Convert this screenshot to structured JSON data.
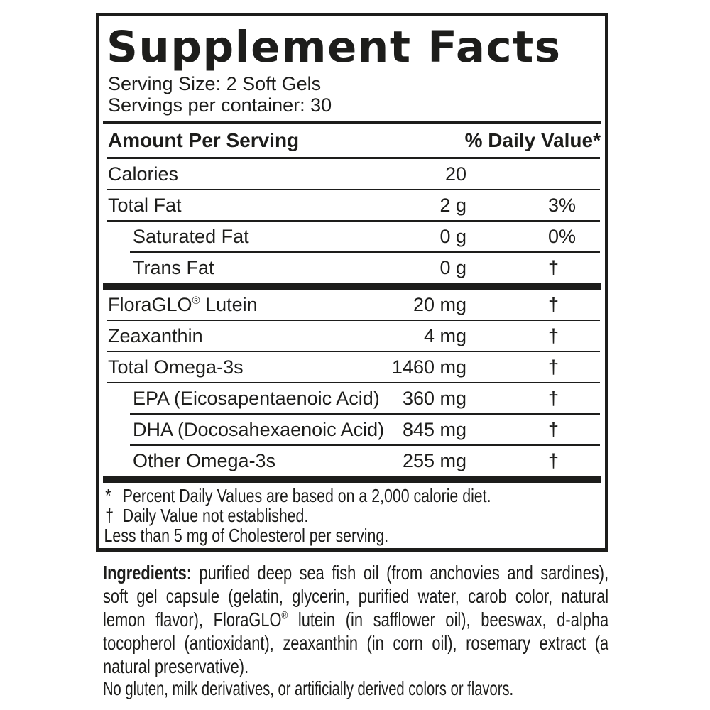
{
  "panel": {
    "title": "Supplement Facts",
    "serving_size": "Serving Size: 2 Soft Gels",
    "servings_per_container": "Servings per container: 30",
    "header": {
      "amount_per_serving": "Amount Per Serving",
      "daily_value": "% Daily Value*"
    },
    "rows": [
      {
        "name": "Calories",
        "amount": "20",
        "dv": ""
      },
      {
        "name": "Total Fat",
        "amount": "2 g",
        "dv": "3%"
      },
      {
        "name": "Saturated Fat",
        "amount": "0 g",
        "dv": "0%"
      },
      {
        "name": "Trans Fat",
        "amount": "0 g",
        "dv": "†"
      },
      {
        "name_pre": "FloraGLO",
        "reg": "®",
        "name_post": " Lutein",
        "amount": "20 mg",
        "dv": "†"
      },
      {
        "name": "Zeaxanthin",
        "amount": "4 mg",
        "dv": "†"
      },
      {
        "name": "Total Omega-3s",
        "amount": "1460 mg",
        "dv": "†"
      },
      {
        "name": "EPA (Eicosapentaenoic Acid)",
        "amount": "360 mg",
        "dv": "†"
      },
      {
        "name": "DHA (Docosahexaenoic Acid)",
        "amount": "845 mg",
        "dv": "†"
      },
      {
        "name": "Other Omega-3s",
        "amount": "255 mg",
        "dv": "†"
      }
    ],
    "footnotes": {
      "asterisk_symbol": "*",
      "asterisk_text": "Percent Daily Values are based on a 2,000 calorie diet.",
      "dagger_symbol": "†",
      "dagger_text": "Daily Value not established.",
      "cholesterol_note": "Less than 5 mg of Cholesterol per serving."
    }
  },
  "ingredients": {
    "label": "Ingredients:",
    "text_before_reg": " purified deep sea fish oil (from anchovies and sardines), soft gel capsule (gelatin, glycerin, purified water, carob color, natural lemon flavor), FloraGLO",
    "reg_mark": "®",
    "text_after_reg": " lutein (in safflower oil), beeswax, d-alpha tocopherol (antioxidant), zeaxanthin (in corn oil), rosemary extract (a natural preservative)."
  },
  "allergen_statement": "No gluten, milk derivatives, or artificially derived colors or flavors.",
  "colors": {
    "ink": "#1d1d1b",
    "background": "#ffffff"
  }
}
